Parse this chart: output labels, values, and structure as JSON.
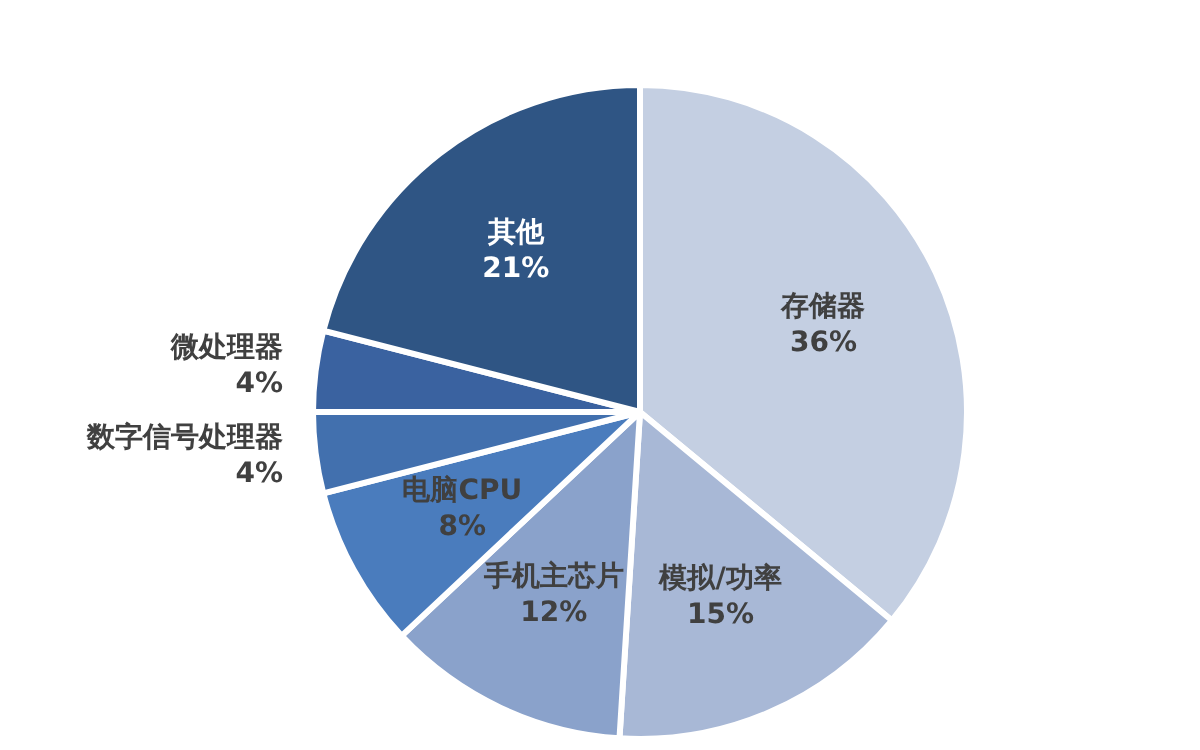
{
  "chart_data": {
    "type": "pie",
    "categories": [
      "存储器",
      "模拟/功率",
      "手机主芯片",
      "电脑CPU",
      "数字信号处理器",
      "微处理器",
      "其他"
    ],
    "values": [
      36,
      15,
      12,
      8,
      4,
      4,
      21
    ],
    "value_labels": [
      "36%",
      "15%",
      "12%",
      "8%",
      "4%",
      "4%",
      "21%"
    ],
    "colors": [
      "#c4cfe2",
      "#a8b8d6",
      "#8aa2cb",
      "#4a7cbd",
      "#4270ae",
      "#3a62a0",
      "#2f5584"
    ],
    "legend": false
  }
}
